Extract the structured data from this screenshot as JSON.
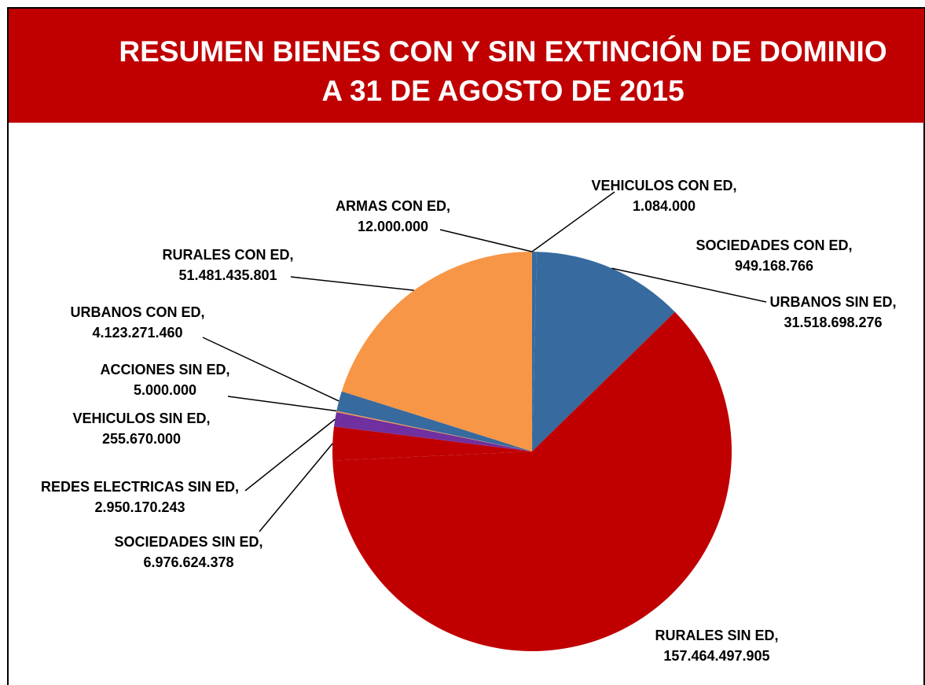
{
  "chart_data": {
    "type": "pie",
    "title": "RESUMEN BIENES CON Y SIN EXTINCIÓN DE DOMINIO",
    "subtitle": "A 31 DE AGOSTO DE 2015",
    "categories": [
      "VEHICULOS CON ED,",
      "SOCIEDADES CON ED,",
      "URBANOS SIN ED,",
      "RURALES SIN ED,",
      "SOCIEDADES SIN ED,",
      "REDES ELECTRICAS SIN ED,",
      "VEHICULOS SIN ED,",
      "ACCIONES SIN ED,",
      "URBANOS CON ED,",
      "RURALES CON ED,",
      "ARMAS CON ED,"
    ],
    "values": [
      1084000,
      949168766,
      31518698276,
      157464497905,
      6976624378,
      2950170243,
      255670000,
      5000000,
      4123271460,
      51481435801,
      12000000
    ],
    "value_labels": [
      "1.084.000",
      "949.168.766",
      "31.518.698.276",
      "157.464.497.905",
      "6.976.624.378",
      "2.950.170.243",
      "255.670.000",
      "5.000.000",
      "4.123.271.460",
      "51.481.435.801",
      "12.000.000"
    ],
    "colors": [
      "#376a9e",
      "#376a9e",
      "#376a9e",
      "#c00000",
      "#c00000",
      "#7030a0",
      "#f79646",
      "#f79646",
      "#376a9e",
      "#f79646",
      "#f79646"
    ]
  }
}
